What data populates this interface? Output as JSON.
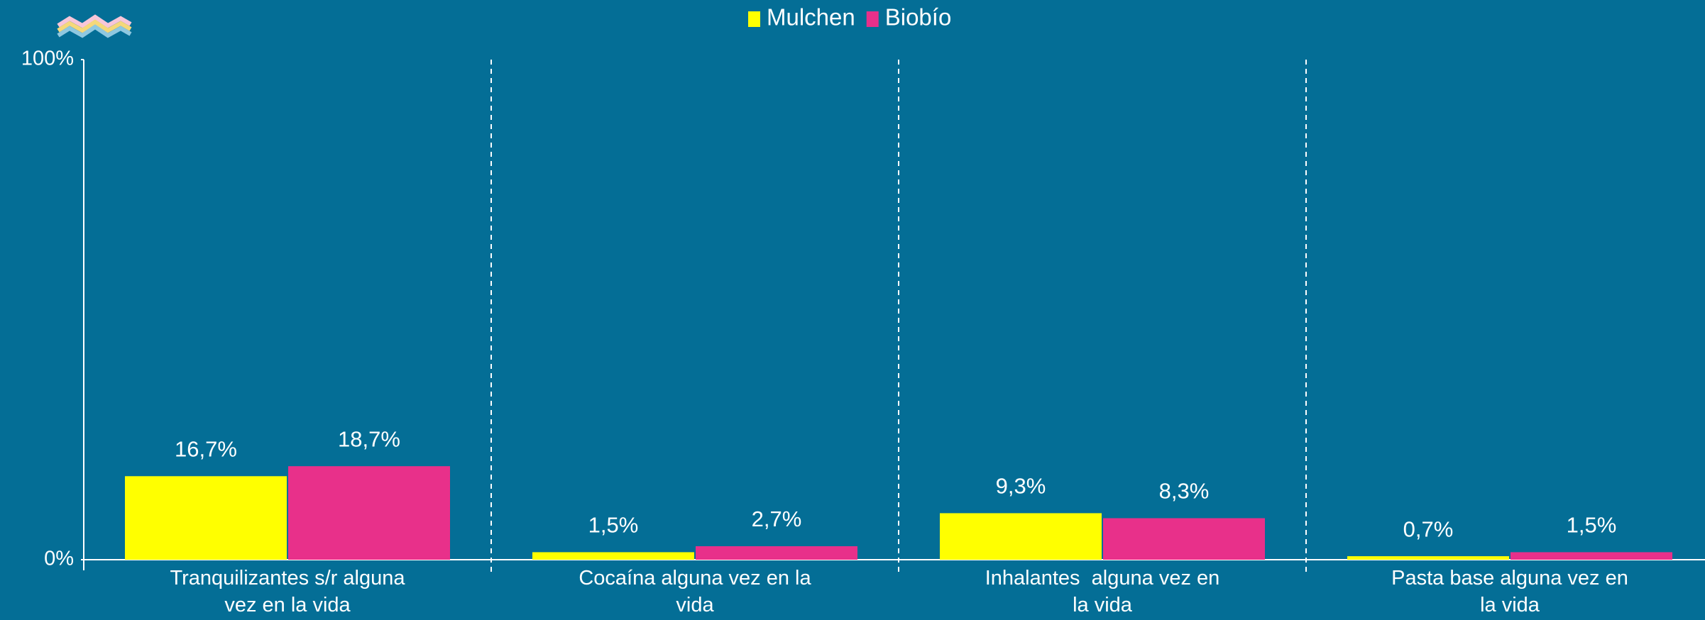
{
  "chart_data": {
    "type": "bar",
    "categories": [
      "Tranquilizantes s/r alguna vez en la vida",
      "Cocaína alguna vez en la vida",
      "Inhalantes  alguna vez en la vida",
      "Pasta base alguna vez en la vida"
    ],
    "series": [
      {
        "name": "Mulchen",
        "color": "#ffff00",
        "values": [
          16.7,
          1.5,
          9.3,
          0.7
        ],
        "value_labels": [
          "16,7%",
          "1,5%",
          "9,3%",
          "0,7%"
        ]
      },
      {
        "name": "Biobío",
        "color": "#e8308a",
        "values": [
          18.7,
          2.7,
          8.3,
          1.5
        ],
        "value_labels": [
          "18,7%",
          "2,7%",
          "8,3%",
          "1,5%"
        ]
      }
    ],
    "ylim": [
      0,
      100
    ],
    "yticks": [
      {
        "value": 0,
        "label": "0%"
      },
      {
        "value": 100,
        "label": "100%"
      }
    ],
    "legend": "top"
  }
}
